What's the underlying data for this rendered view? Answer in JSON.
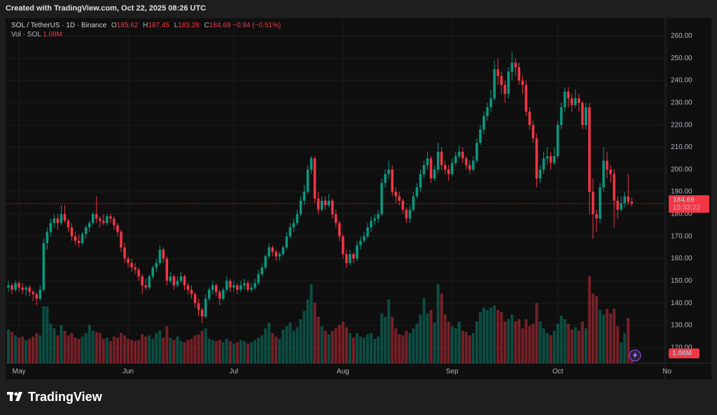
{
  "header": {
    "created": "Created with TradingView.com, Oct 22, 2025 08:26 UTC"
  },
  "brand": "TradingView",
  "chart_data": {
    "type": "candlestick",
    "symbol": "SOL / TetherUS · 1D · Binance",
    "ohlc_letters": [
      "O",
      "H",
      "L",
      "C"
    ],
    "change_label": "−0.94 (−0.51%)",
    "volume_title": "Vol · SOL",
    "last_volume_label": "1.08M",
    "countdown": "15:33:22",
    "up_color": "#089981",
    "down_color": "#f23645",
    "xlim": [
      -0.8,
      186.5
    ],
    "xticks": [
      {
        "value": 3,
        "label": "May"
      },
      {
        "value": 34,
        "label": "Jun"
      },
      {
        "value": 64,
        "label": "Jul"
      },
      {
        "value": 95,
        "label": "Aug"
      },
      {
        "value": 126,
        "label": "Sep"
      },
      {
        "value": 156,
        "label": "Oct"
      },
      {
        "value": 187,
        "label": "No"
      }
    ],
    "ylim": [
      113,
      268
    ],
    "yticks": [
      {
        "value": 120,
        "label": "120.00"
      },
      {
        "value": 130,
        "label": "130.00"
      },
      {
        "value": 140,
        "label": "140.00"
      },
      {
        "value": 150,
        "label": "150.00"
      },
      {
        "value": 160,
        "label": "160.00"
      },
      {
        "value": 170,
        "label": "170.00"
      },
      {
        "value": 180,
        "label": "180.00"
      },
      {
        "value": 190,
        "label": "190.00"
      },
      {
        "value": 200,
        "label": "200.00"
      },
      {
        "value": 210,
        "label": "210.00"
      },
      {
        "value": 220,
        "label": "220.00"
      },
      {
        "value": 230,
        "label": "230.00"
      },
      {
        "value": 240,
        "label": "240.00"
      },
      {
        "value": 250,
        "label": "250.00"
      },
      {
        "value": 260,
        "label": "260.00"
      }
    ],
    "y2lim": [
      0,
      7.6
    ],
    "candles": [
      [
        147,
        150,
        145,
        148,
        2.9
      ],
      [
        148,
        149,
        144,
        146,
        2.7
      ],
      [
        146,
        150,
        145,
        149,
        2.4
      ],
      [
        149,
        150,
        145,
        147,
        2.2
      ],
      [
        147,
        149,
        144,
        146,
        2.3
      ],
      [
        146,
        148,
        143,
        147,
        2.0
      ],
      [
        147,
        148,
        143,
        145,
        2.1
      ],
      [
        145,
        146,
        141,
        144,
        2.3
      ],
      [
        144,
        145,
        139,
        142,
        2.6
      ],
      [
        142,
        148,
        141,
        146,
        2.4
      ],
      [
        146,
        169,
        145,
        167,
        4.9
      ],
      [
        167,
        174,
        164,
        172,
        4.9
      ],
      [
        172,
        178,
        170,
        176,
        3.4
      ],
      [
        176,
        180,
        174,
        178,
        3.0
      ],
      [
        178,
        180,
        173,
        176,
        2.4
      ],
      [
        176,
        184,
        175,
        180,
        3.3
      ],
      [
        180,
        184,
        176,
        177,
        2.8
      ],
      [
        177,
        178,
        172,
        174,
        2.4
      ],
      [
        174,
        176,
        168,
        170,
        2.6
      ],
      [
        170,
        172,
        166,
        168,
        2.2
      ],
      [
        168,
        171,
        165,
        167,
        2.1
      ],
      [
        167,
        172,
        166,
        171,
        2.3
      ],
      [
        171,
        175,
        169,
        174,
        2.6
      ],
      [
        174,
        177,
        172,
        176,
        3.3
      ],
      [
        176,
        181,
        175,
        180,
        2.8
      ],
      [
        180,
        188,
        176,
        178,
        2.7
      ],
      [
        178,
        179,
        174,
        177,
        2.6
      ],
      [
        177,
        180,
        175,
        176,
        2.1
      ],
      [
        176,
        180,
        175,
        179,
        2.2
      ],
      [
        179,
        180,
        176,
        178,
        1.9
      ],
      [
        178,
        179,
        173,
        175,
        2.3
      ],
      [
        175,
        176,
        170,
        172,
        2.2
      ],
      [
        172,
        173,
        163,
        165,
        2.6
      ],
      [
        165,
        167,
        158,
        160,
        2.4
      ],
      [
        160,
        161,
        156,
        158,
        2.1
      ],
      [
        158,
        160,
        154,
        156,
        2.0
      ],
      [
        156,
        158,
        153,
        155,
        1.9
      ],
      [
        155,
        156,
        150,
        152,
        2.0
      ],
      [
        152,
        153,
        144,
        148,
        2.5
      ],
      [
        148,
        151,
        146,
        147,
        2.3
      ],
      [
        147,
        153,
        146,
        152,
        2.4
      ],
      [
        152,
        157,
        151,
        156,
        2.1
      ],
      [
        156,
        160,
        154,
        158,
        2.6
      ],
      [
        158,
        166,
        157,
        164,
        2.8
      ],
      [
        164,
        165,
        158,
        160,
        2.2
      ],
      [
        160,
        161,
        148,
        150,
        3.2
      ],
      [
        150,
        154,
        149,
        152,
        2.2
      ],
      [
        152,
        153,
        146,
        148,
        2.0
      ],
      [
        148,
        152,
        147,
        150,
        2.3
      ],
      [
        150,
        154,
        149,
        152,
        1.9
      ],
      [
        152,
        153,
        146,
        148,
        1.8
      ],
      [
        148,
        149,
        144,
        146,
        2.0
      ],
      [
        146,
        148,
        142,
        144,
        2.1
      ],
      [
        144,
        145,
        138,
        140,
        2.4
      ],
      [
        140,
        142,
        134,
        137,
        2.5
      ],
      [
        137,
        138,
        131,
        134,
        2.8
      ],
      [
        134,
        144,
        133,
        142,
        3.0
      ],
      [
        142,
        147,
        141,
        146,
        2.1
      ],
      [
        146,
        150,
        144,
        148,
        2.0
      ],
      [
        148,
        149,
        143,
        145,
        1.9
      ],
      [
        145,
        146,
        139,
        142,
        2.0
      ],
      [
        142,
        147,
        141,
        146,
        1.8
      ],
      [
        146,
        152,
        145,
        150,
        2.1
      ],
      [
        150,
        151,
        145,
        147,
        1.9
      ],
      [
        147,
        150,
        145,
        148,
        1.7
      ],
      [
        148,
        149,
        144,
        146,
        1.8
      ],
      [
        146,
        150,
        145,
        148,
        2.0
      ],
      [
        148,
        151,
        146,
        149,
        1.9
      ],
      [
        149,
        150,
        145,
        146,
        1.7
      ],
      [
        146,
        149,
        145,
        147,
        1.8
      ],
      [
        147,
        151,
        146,
        149,
        2.0
      ],
      [
        149,
        155,
        148,
        153,
        2.2
      ],
      [
        153,
        158,
        152,
        156,
        2.4
      ],
      [
        156,
        162,
        155,
        161,
        3.0
      ],
      [
        161,
        167,
        160,
        165,
        3.5
      ],
      [
        165,
        166,
        161,
        163,
        2.6
      ],
      [
        163,
        164,
        159,
        161,
        2.3
      ],
      [
        161,
        163,
        159,
        162,
        2.1
      ],
      [
        162,
        166,
        161,
        165,
        2.9
      ],
      [
        165,
        172,
        164,
        170,
        3.2
      ],
      [
        170,
        176,
        169,
        174,
        3.5
      ],
      [
        174,
        178,
        172,
        176,
        2.8
      ],
      [
        176,
        182,
        175,
        180,
        3.1
      ],
      [
        180,
        188,
        179,
        186,
        3.8
      ],
      [
        186,
        193,
        184,
        190,
        4.5
      ],
      [
        190,
        202,
        189,
        200,
        5.5
      ],
      [
        200,
        206,
        198,
        205,
        6.8
      ],
      [
        205,
        206,
        185,
        187,
        5.2
      ],
      [
        187,
        190,
        180,
        182,
        4.0
      ],
      [
        182,
        188,
        181,
        186,
        3.2
      ],
      [
        186,
        188,
        182,
        184,
        2.8
      ],
      [
        184,
        189,
        183,
        186,
        2.5
      ],
      [
        186,
        187,
        178,
        180,
        2.8
      ],
      [
        180,
        182,
        174,
        176,
        3.0
      ],
      [
        176,
        177,
        168,
        170,
        3.3
      ],
      [
        170,
        171,
        160,
        162,
        3.6
      ],
      [
        162,
        164,
        156,
        158,
        3.1
      ],
      [
        158,
        164,
        157,
        162,
        2.6
      ],
      [
        162,
        163,
        158,
        160,
        2.2
      ],
      [
        160,
        168,
        159,
        166,
        2.6
      ],
      [
        166,
        170,
        164,
        168,
        2.3
      ],
      [
        168,
        172,
        167,
        170,
        2.2
      ],
      [
        170,
        176,
        169,
        174,
        2.5
      ],
      [
        174,
        179,
        172,
        177,
        2.6
      ],
      [
        177,
        180,
        175,
        178,
        2.1
      ],
      [
        178,
        182,
        176,
        180,
        2.3
      ],
      [
        180,
        196,
        179,
        194,
        4.3
      ],
      [
        194,
        200,
        192,
        198,
        4.0
      ],
      [
        198,
        204,
        196,
        200,
        5.5
      ],
      [
        200,
        202,
        188,
        190,
        4.0
      ],
      [
        190,
        192,
        185,
        188,
        3.0
      ],
      [
        188,
        190,
        184,
        186,
        2.5
      ],
      [
        186,
        187,
        180,
        182,
        2.4
      ],
      [
        182,
        183,
        176,
        178,
        2.8
      ],
      [
        178,
        184,
        176,
        182,
        2.6
      ],
      [
        182,
        190,
        181,
        188,
        3.0
      ],
      [
        188,
        194,
        187,
        192,
        3.4
      ],
      [
        192,
        200,
        190,
        198,
        4.2
      ],
      [
        198,
        204,
        196,
        202,
        5.6
      ],
      [
        202,
        208,
        200,
        205,
        4.3
      ],
      [
        205,
        206,
        194,
        196,
        4.6
      ],
      [
        196,
        202,
        195,
        200,
        3.5
      ],
      [
        200,
        212,
        198,
        208,
        6.8
      ],
      [
        208,
        210,
        200,
        202,
        6.0
      ],
      [
        202,
        204,
        198,
        200,
        4.2
      ],
      [
        200,
        202,
        195,
        198,
        3.6
      ],
      [
        198,
        205,
        197,
        203,
        3.2
      ],
      [
        203,
        208,
        202,
        206,
        3.0
      ],
      [
        206,
        211,
        205,
        208,
        3.6
      ],
      [
        208,
        210,
        203,
        205,
        2.8
      ],
      [
        205,
        206,
        200,
        202,
        2.7
      ],
      [
        202,
        204,
        198,
        200,
        2.4
      ],
      [
        200,
        206,
        199,
        204,
        2.6
      ],
      [
        204,
        214,
        203,
        212,
        3.6
      ],
      [
        212,
        220,
        211,
        218,
        4.4
      ],
      [
        218,
        226,
        216,
        224,
        4.8
      ],
      [
        224,
        230,
        222,
        228,
        4.6
      ],
      [
        228,
        236,
        226,
        232,
        4.8
      ],
      [
        232,
        249,
        231,
        245,
        5.0
      ],
      [
        245,
        250,
        238,
        242,
        4.6
      ],
      [
        242,
        244,
        234,
        238,
        4.4
      ],
      [
        238,
        240,
        230,
        234,
        3.6
      ],
      [
        234,
        246,
        232,
        244,
        3.8
      ],
      [
        244,
        253,
        240,
        248,
        4.2
      ],
      [
        248,
        250,
        242,
        246,
        3.6
      ],
      [
        246,
        248,
        238,
        240,
        3.8
      ],
      [
        240,
        242,
        234,
        238,
        3.0
      ],
      [
        238,
        240,
        224,
        226,
        3.8
      ],
      [
        226,
        228,
        218,
        220,
        3.2
      ],
      [
        220,
        222,
        212,
        214,
        3.4
      ],
      [
        214,
        216,
        192,
        196,
        5.2
      ],
      [
        196,
        202,
        194,
        200,
        3.6
      ],
      [
        200,
        208,
        198,
        205,
        3.0
      ],
      [
        205,
        210,
        202,
        206,
        2.6
      ],
      [
        206,
        208,
        200,
        203,
        2.4
      ],
      [
        203,
        210,
        202,
        206,
        2.8
      ],
      [
        206,
        222,
        205,
        220,
        3.4
      ],
      [
        220,
        230,
        218,
        228,
        4.1
      ],
      [
        228,
        237,
        226,
        235,
        3.8
      ],
      [
        235,
        237,
        228,
        232,
        3.4
      ],
      [
        232,
        234,
        226,
        229,
        2.9
      ],
      [
        229,
        236,
        228,
        232,
        3.1
      ],
      [
        232,
        234,
        226,
        230,
        2.8
      ],
      [
        230,
        231,
        218,
        220,
        3.6
      ],
      [
        220,
        230,
        218,
        228,
        3.0
      ],
      [
        228,
        230,
        180,
        190,
        7.5
      ],
      [
        190,
        196,
        169,
        180,
        6.0
      ],
      [
        180,
        182,
        172,
        178,
        5.8
      ],
      [
        178,
        194,
        176,
        192,
        4.6
      ],
      [
        192,
        210,
        190,
        204,
        4.2
      ],
      [
        204,
        208,
        196,
        200,
        4.7
      ],
      [
        200,
        202,
        194,
        198,
        4.3
      ],
      [
        198,
        200,
        174,
        186,
        4.7
      ],
      [
        186,
        188,
        178,
        182,
        3.2
      ],
      [
        182,
        188,
        181,
        185,
        1.8
      ],
      [
        185,
        190,
        183,
        188,
        2.6
      ],
      [
        188,
        198,
        184,
        185.62,
        3.9
      ],
      [
        185.62,
        187.45,
        183.28,
        184.69,
        1.08
      ]
    ]
  }
}
